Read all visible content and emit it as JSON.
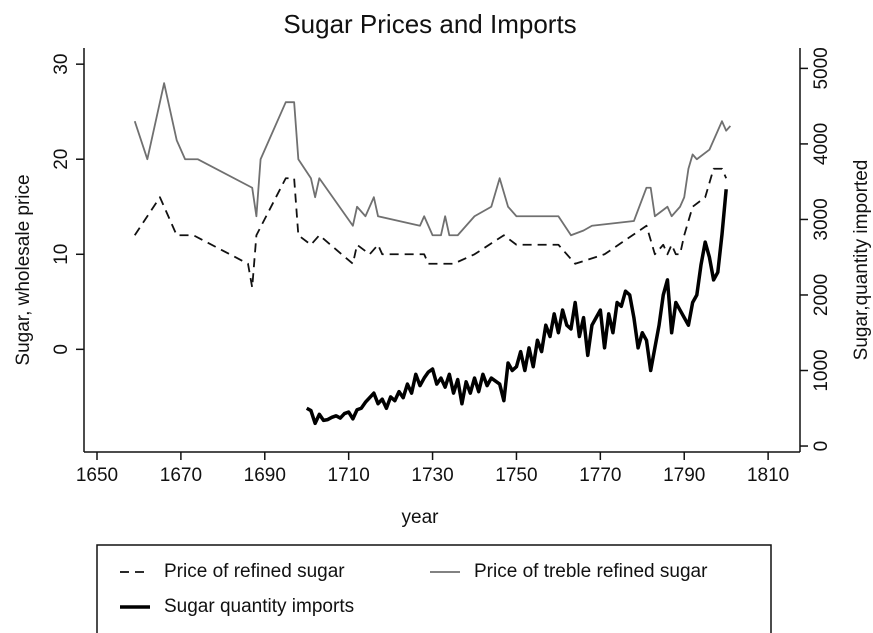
{
  "chart_data": {
    "type": "line",
    "title": "Sugar Prices and Imports",
    "x_label": "year",
    "y_label": "Sugar, wholesale price",
    "y2_label": "Sugar,quantity imported",
    "xlim": [
      1646.9,
      1817.6
    ],
    "xticks": [
      1650,
      1670,
      1690,
      1710,
      1730,
      1750,
      1770,
      1790,
      1810
    ],
    "ylim": [
      -10.8,
      31.7
    ],
    "yticks": [
      0,
      10,
      20,
      30
    ],
    "y2lim": [
      -79,
      5270
    ],
    "y2ticks": [
      0,
      1000,
      2000,
      3000,
      4000,
      5000
    ],
    "series": [
      {
        "name": "Price of refined sugar",
        "color": "#111111",
        "line_style": "dashed",
        "width": 1.8,
        "x": [
          1659,
          1665,
          1669,
          1673,
          1686,
          1687,
          1688,
          1695,
          1697,
          1698,
          1701,
          1703,
          1711,
          1712,
          1715,
          1717,
          1718,
          1728,
          1729,
          1733,
          1735,
          1740,
          1747,
          1750,
          1760,
          1764,
          1771,
          1781,
          1783,
          1785,
          1786,
          1787,
          1788,
          1789,
          1790,
          1792,
          1795,
          1797,
          1799,
          1800
        ],
        "values": [
          12,
          16,
          12,
          12,
          9,
          6.5,
          12,
          18,
          18,
          12,
          11,
          12,
          9,
          11,
          10,
          11,
          10,
          10,
          9,
          9,
          9,
          10,
          12,
          11,
          11,
          9,
          10,
          13,
          10,
          11,
          10,
          11,
          10,
          10,
          12,
          15,
          16,
          19,
          19,
          18
        ]
      },
      {
        "name": "Price of treble refined sugar",
        "color": "#707070",
        "line_style": "solid",
        "width": 1.8,
        "x": [
          1659,
          1662,
          1666,
          1669,
          1671,
          1674,
          1687,
          1688,
          1689,
          1695,
          1697,
          1698,
          1701,
          1702,
          1703,
          1711,
          1712,
          1714,
          1716,
          1717,
          1727,
          1728,
          1729,
          1730,
          1732,
          1733,
          1734,
          1736,
          1740,
          1744,
          1746,
          1748,
          1750,
          1760,
          1763,
          1766,
          1768,
          1778,
          1781,
          1782,
          1783,
          1786,
          1787,
          1789,
          1790,
          1791,
          1792,
          1793,
          1796,
          1798,
          1799,
          1800,
          1801
        ],
        "values": [
          24,
          20,
          28,
          22,
          20,
          20,
          17,
          14,
          20,
          26,
          26,
          20,
          18,
          16,
          18,
          13,
          15,
          14,
          16,
          14,
          13,
          14,
          13,
          12,
          12,
          14,
          12,
          12,
          14,
          15,
          18,
          15,
          14,
          14,
          12,
          12.5,
          13,
          13.5,
          17,
          17,
          14,
          15,
          14,
          15,
          16,
          19,
          20.5,
          20,
          21,
          23,
          24,
          23,
          23.5
        ]
      },
      {
        "name": "Sugar quantity imports",
        "color": "#000000",
        "line_style": "solid",
        "width": 3.5,
        "axis": "y2",
        "x": [
          1700,
          1701,
          1702,
          1703,
          1704,
          1705,
          1706,
          1707,
          1708,
          1709,
          1710,
          1711,
          1712,
          1713,
          1714,
          1715,
          1716,
          1717,
          1718,
          1719,
          1720,
          1721,
          1722,
          1723,
          1724,
          1725,
          1726,
          1727,
          1728,
          1729,
          1730,
          1731,
          1732,
          1733,
          1734,
          1735,
          1736,
          1737,
          1738,
          1739,
          1740,
          1741,
          1742,
          1743,
          1744,
          1745,
          1746,
          1747,
          1748,
          1749,
          1750,
          1751,
          1752,
          1753,
          1754,
          1755,
          1756,
          1757,
          1758,
          1759,
          1760,
          1761,
          1762,
          1763,
          1764,
          1765,
          1766,
          1767,
          1768,
          1769,
          1770,
          1771,
          1772,
          1773,
          1774,
          1775,
          1776,
          1777,
          1778,
          1779,
          1780,
          1781,
          1782,
          1783,
          1784,
          1785,
          1786,
          1787,
          1788,
          1789,
          1790,
          1791,
          1792,
          1793,
          1794,
          1795,
          1796,
          1797,
          1798,
          1799,
          1800
        ],
        "values": [
          500,
          470,
          300,
          420,
          340,
          350,
          380,
          400,
          370,
          430,
          450,
          360,
          480,
          500,
          580,
          640,
          700,
          560,
          620,
          500,
          650,
          600,
          720,
          640,
          820,
          700,
          950,
          800,
          900,
          980,
          1020,
          820,
          900,
          780,
          950,
          700,
          880,
          560,
          850,
          700,
          900,
          720,
          950,
          800,
          900,
          860,
          820,
          600,
          1100,
          1000,
          1050,
          1250,
          1000,
          1300,
          1050,
          1400,
          1250,
          1600,
          1450,
          1750,
          1500,
          1800,
          1600,
          1550,
          1900,
          1450,
          1700,
          1200,
          1600,
          1700,
          1800,
          1300,
          1750,
          1500,
          1900,
          1850,
          2050,
          2000,
          1700,
          1300,
          1500,
          1400,
          1000,
          1300,
          1600,
          2000,
          2200,
          1500,
          1900,
          1800,
          1700,
          1600,
          1900,
          2000,
          2400,
          2700,
          2500,
          2200,
          2300,
          2800,
          3400
        ]
      }
    ]
  }
}
